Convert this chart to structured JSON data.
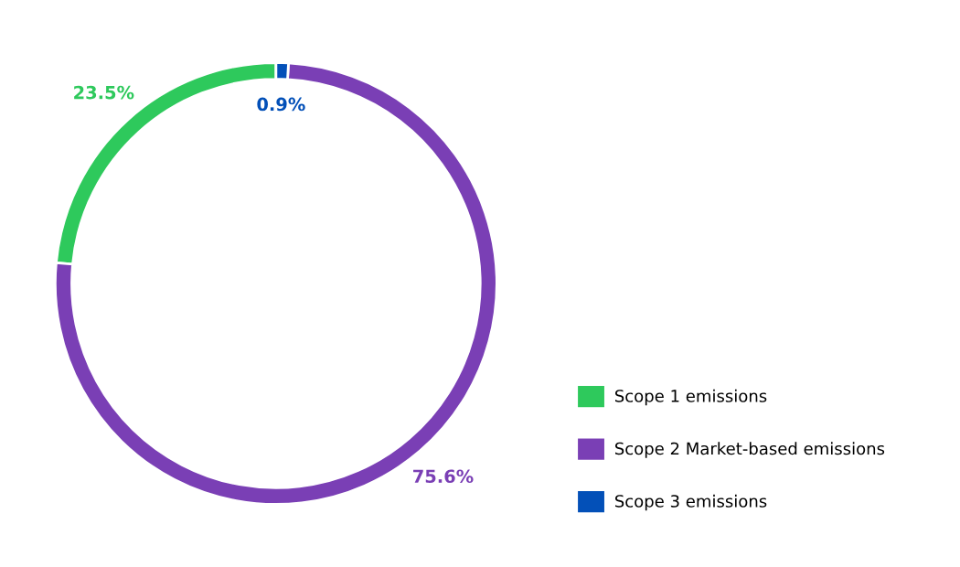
{
  "chart_data": {
    "type": "donut",
    "categories": [
      "Scope 1 emissions",
      "Scope 2 Market-based emissions",
      "Scope 3 emissions"
    ],
    "values": [
      23.5,
      75.6,
      0.9
    ],
    "colors": [
      "#2ec95c",
      "#7a3fb5",
      "#0350b8"
    ],
    "value_labels": [
      "23.5%",
      "75.6%",
      "0.9%"
    ],
    "legend": "right"
  }
}
